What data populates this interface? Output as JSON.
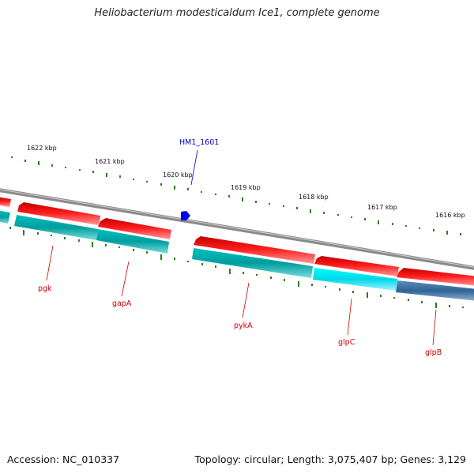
{
  "title": "Heliobacterium modesticaldum Ice1, complete genome",
  "footer": {
    "accession": "Accession: NC_010337",
    "summary": "Topology: circular; Length: 3,075,407 bp; Genes: 3,129"
  },
  "kbp_labels": [
    "1622 kbp",
    "1621 kbp",
    "1620 kbp",
    "1619 kbp",
    "1618 kbp",
    "1617 kbp",
    "1616 kbp"
  ],
  "feature_label": "HM1_1601",
  "gene_labels": [
    "pgk",
    "gapA",
    "pykA",
    "glpC",
    "glpB"
  ],
  "colors": {
    "backbone": "#8c8c8c",
    "cds_forward": "#ff0000",
    "cds_cyan": "#00a8a8",
    "cds_cyan_bright": "#00e5ee",
    "cds_blue": "#3a6f9f",
    "tick": "#2e7d1e",
    "feature": "#0000cc",
    "gene_label": "#d40000"
  }
}
